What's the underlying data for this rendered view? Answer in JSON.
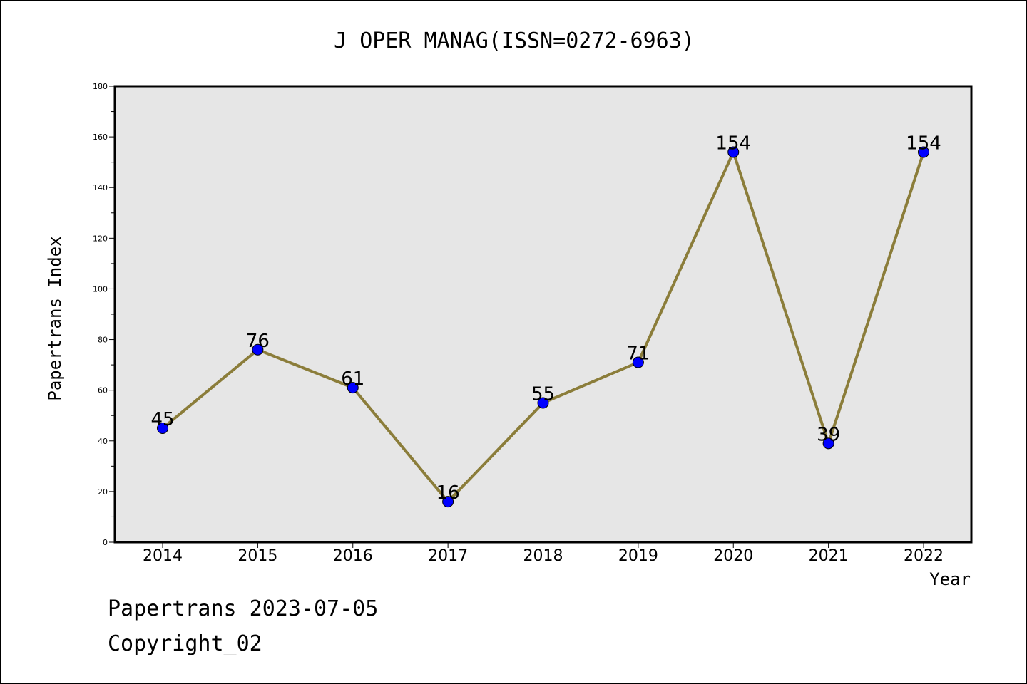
{
  "chart_data": {
    "type": "line",
    "title": "J OPER MANAG(ISSN=0272-6963)",
    "xlabel": "Year",
    "ylabel": "Papertrans Index",
    "categories": [
      "2014",
      "2015",
      "2016",
      "2017",
      "2018",
      "2019",
      "2020",
      "2021",
      "2022"
    ],
    "values": [
      45,
      76,
      61,
      16,
      55,
      71,
      154,
      39,
      154
    ],
    "data_labels": [
      "45",
      "76",
      "61",
      "16",
      "55",
      "71",
      "154",
      "39",
      "154"
    ],
    "ylim": [
      0,
      180
    ],
    "yticks": [
      "0",
      "20",
      "40",
      "60",
      "80",
      "100",
      "120",
      "140",
      "160",
      "180"
    ],
    "grid": false,
    "colors": {
      "line": "#8b7d3a",
      "marker": "#0000ff",
      "plot_background": "#e6e6e6"
    }
  },
  "footer": {
    "line1": "Papertrans 2023-07-05",
    "line2": "Copyright_02"
  }
}
